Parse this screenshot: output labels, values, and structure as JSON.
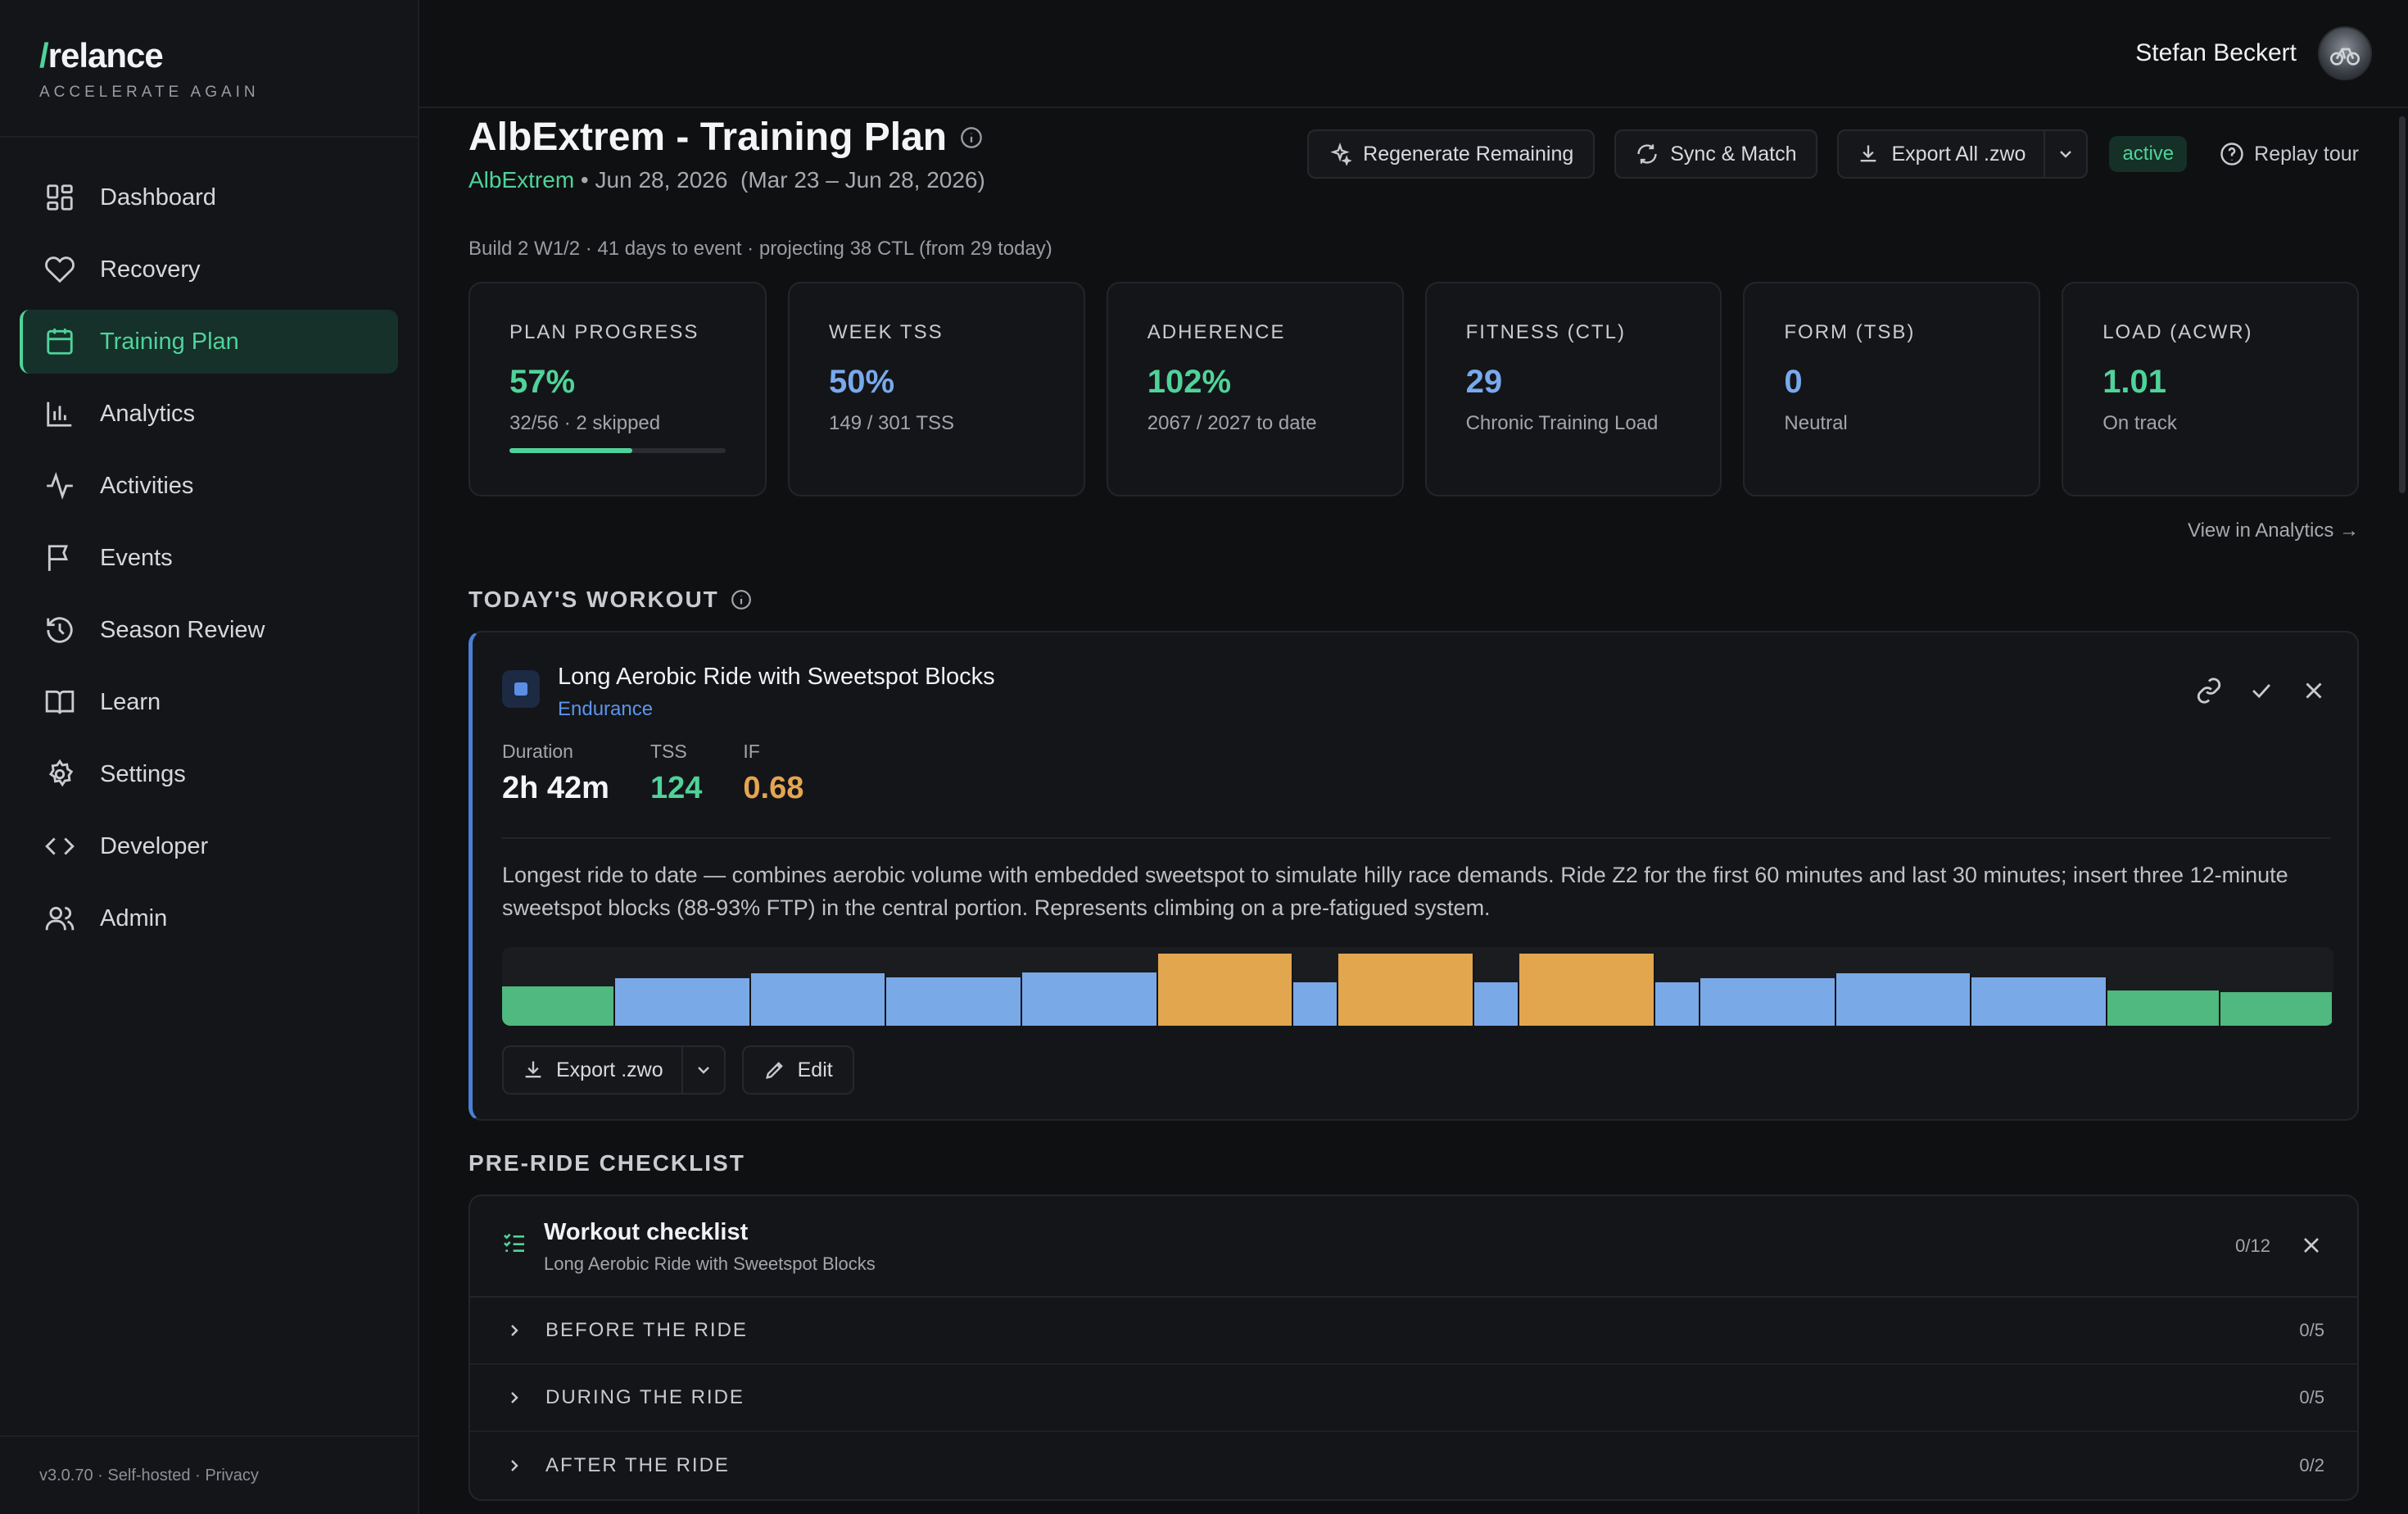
{
  "brand": {
    "name": "relance",
    "slash": "/",
    "tagline": "ACCELERATE AGAIN"
  },
  "nav": [
    {
      "label": "Dashboard",
      "icon": "dashboard-icon"
    },
    {
      "label": "Recovery",
      "icon": "heart-icon"
    },
    {
      "label": "Training Plan",
      "icon": "calendar-icon",
      "active": true
    },
    {
      "label": "Analytics",
      "icon": "bar-chart-icon"
    },
    {
      "label": "Activities",
      "icon": "activity-icon"
    },
    {
      "label": "Events",
      "icon": "flag-icon"
    },
    {
      "label": "Season Review",
      "icon": "history-icon"
    },
    {
      "label": "Learn",
      "icon": "book-icon"
    },
    {
      "label": "Settings",
      "icon": "gear-icon"
    },
    {
      "label": "Developer",
      "icon": "code-icon"
    },
    {
      "label": "Admin",
      "icon": "users-icon"
    }
  ],
  "footer": "v3.0.70 · Self-hosted · Privacy",
  "user": {
    "name": "Stefan Beckert"
  },
  "page": {
    "title": "AlbExtrem - Training Plan",
    "event": "AlbExtrem",
    "event_date": " • Jun 28, 2026  (Mar 23 – Jun 28, 2026)",
    "build": "Build 2 W1/2 · 41 days to event · projecting 38 CTL (from 29 today)"
  },
  "actions": {
    "regenerate": "Regenerate Remaining",
    "sync": "Sync & Match",
    "export_all": "Export All .zwo",
    "status": "active",
    "replay": "Replay tour"
  },
  "stats": [
    {
      "label": "PLAN PROGRESS",
      "value": "57%",
      "sub": "32/56 · 2 skipped",
      "color": "#4fd39a",
      "progress": 0.57
    },
    {
      "label": "WEEK TSS",
      "value": "50%",
      "sub": "149 / 301 TSS",
      "color": "#78a9ec"
    },
    {
      "label": "ADHERENCE",
      "value": "102%",
      "sub": "2067 / 2027 to date",
      "color": "#4fd39a"
    },
    {
      "label": "FITNESS (CTL)",
      "value": "29",
      "sub": "Chronic Training Load",
      "color": "#78a9ec"
    },
    {
      "label": "FORM (TSB)",
      "value": "0",
      "sub": "Neutral",
      "color": "#78a9ec"
    },
    {
      "label": "LOAD (ACWR)",
      "value": "1.01",
      "sub": "On track",
      "color": "#4fd39a"
    }
  ],
  "view_analytics": "View in Analytics →",
  "today": {
    "section": "TODAY'S WORKOUT",
    "title": "Long Aerobic Ride with Sweetspot Blocks",
    "type": "Endurance",
    "metrics": [
      {
        "label": "Duration",
        "value": "2h 42m",
        "color": "#f4f5f7"
      },
      {
        "label": "TSS",
        "value": "124",
        "color": "#4fd39a"
      },
      {
        "label": "IF",
        "value": "0.68",
        "color": "#e4a552"
      }
    ],
    "description": "Longest ride to date — combines aerobic volume with embedded sweetspot to simulate hilly race demands. Ride Z2 for the first 60 minutes and last 30 minutes; insert three 12-minute sweetspot blocks (88-93% FTP) in the central portion. Represents climbing on a pre-fatigued system.",
    "export": "Export .zwo",
    "edit": "Edit",
    "colors": {
      "recovery": "#4fb97f",
      "endurance": "#7aa9e8",
      "sweetspot": "#e2a64f"
    },
    "segments": [
      {
        "zone": "recovery",
        "duration": 10,
        "intensity": 0.5
      },
      {
        "zone": "endurance",
        "duration": 12,
        "intensity": 0.6
      },
      {
        "zone": "endurance",
        "duration": 12,
        "intensity": 0.67
      },
      {
        "zone": "endurance",
        "duration": 12,
        "intensity": 0.61
      },
      {
        "zone": "endurance",
        "duration": 12,
        "intensity": 0.68
      },
      {
        "zone": "sweetspot",
        "duration": 12,
        "intensity": 0.92
      },
      {
        "zone": "endurance",
        "duration": 4,
        "intensity": 0.55
      },
      {
        "zone": "sweetspot",
        "duration": 12,
        "intensity": 0.92
      },
      {
        "zone": "endurance",
        "duration": 4,
        "intensity": 0.55
      },
      {
        "zone": "sweetspot",
        "duration": 12,
        "intensity": 0.92
      },
      {
        "zone": "endurance",
        "duration": 4,
        "intensity": 0.55
      },
      {
        "zone": "endurance",
        "duration": 12,
        "intensity": 0.6
      },
      {
        "zone": "endurance",
        "duration": 12,
        "intensity": 0.67
      },
      {
        "zone": "endurance",
        "duration": 12,
        "intensity": 0.61
      },
      {
        "zone": "recovery",
        "duration": 10,
        "intensity": 0.45
      },
      {
        "zone": "recovery",
        "duration": 10,
        "intensity": 0.43
      }
    ]
  },
  "checklist": {
    "section": "PRE-RIDE CHECKLIST",
    "title": "Workout checklist",
    "subtitle": "Long Aerobic Ride with Sweetspot Blocks",
    "count": "0/12",
    "groups": [
      {
        "label": "BEFORE THE RIDE",
        "count": "0/5"
      },
      {
        "label": "DURING THE RIDE",
        "count": "0/5"
      },
      {
        "label": "AFTER THE RIDE",
        "count": "0/2"
      }
    ]
  }
}
